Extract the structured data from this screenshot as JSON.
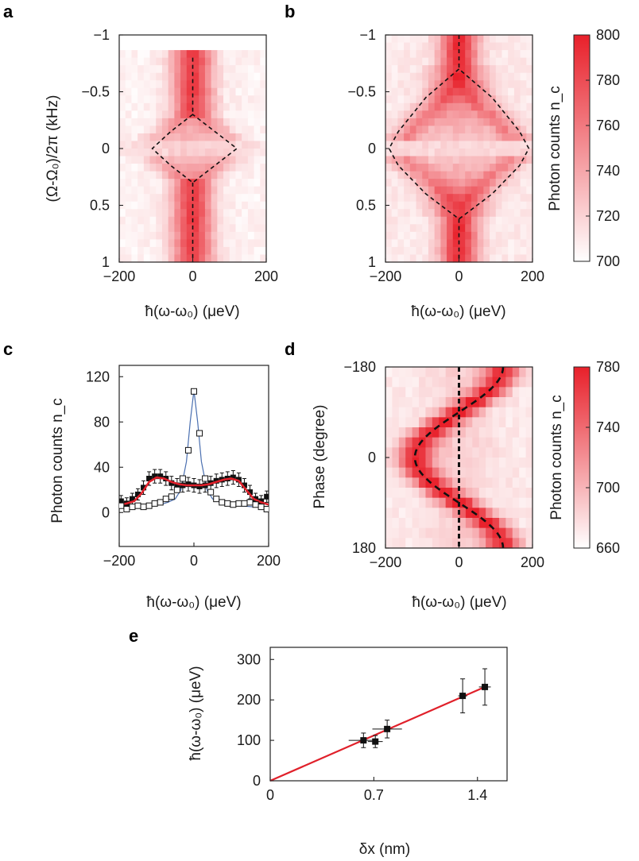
{
  "chart_data": [
    {
      "panel": "a",
      "type": "heatmap",
      "xlabel": "ħ(ω-ω₀) (μeV)",
      "ylabel": "(Ω-Ω₀)/2π (kHz)",
      "xlim": [
        -200,
        200
      ],
      "ylim": [
        -1,
        1
      ],
      "y_inverted": true,
      "xticks": [
        "−200",
        "0",
        "200"
      ],
      "yticks": [
        "−1",
        "−0.5",
        "0",
        "0.5",
        "1"
      ],
      "colorbar": {
        "label": "Photon counts n_c",
        "range": [
          700,
          800
        ],
        "ticks": [
          "800",
          "780",
          "760",
          "740",
          "720",
          "700"
        ]
      },
      "map_extent_y": [
        -0.85,
        1.0
      ],
      "ridge_width": 38,
      "background_level": 0.06,
      "dashed_curve": {
        "center_line_y": [
          [
            -0.8,
            -0.3
          ],
          [
            0.3,
            1.0
          ]
        ],
        "loop": [
          [
            0,
            -0.3
          ],
          [
            -60,
            -0.15
          ],
          [
            -110,
            0
          ],
          [
            -60,
            0.15
          ],
          [
            0,
            0.3
          ],
          [
            60,
            0.15
          ],
          [
            120,
            0
          ],
          [
            60,
            -0.15
          ]
        ]
      }
    },
    {
      "panel": "b",
      "type": "heatmap",
      "xlabel": "ħ(ω-ω₀) (μeV)",
      "ylabel": "",
      "xlim": [
        -200,
        200
      ],
      "ylim": [
        -1,
        1
      ],
      "y_inverted": true,
      "xticks": [
        "−200",
        "0",
        "200"
      ],
      "yticks": [
        "−1",
        "−0.5",
        "0",
        "0.5",
        "1"
      ],
      "map_extent_y": [
        -1.0,
        1.0
      ],
      "ridge_width": 35,
      "background_level": 0.1,
      "dashed_curve": {
        "center_line_y": [
          [
            -1.0,
            -0.7
          ],
          [
            0.62,
            1.0
          ]
        ],
        "loop": [
          [
            0,
            -0.7
          ],
          [
            -90,
            -0.45
          ],
          [
            -165,
            -0.15
          ],
          [
            -190,
            0
          ],
          [
            -165,
            0.15
          ],
          [
            -90,
            0.4
          ],
          [
            0,
            0.62
          ],
          [
            90,
            0.4
          ],
          [
            165,
            0.15
          ],
          [
            190,
            0
          ],
          [
            165,
            -0.15
          ],
          [
            90,
            -0.45
          ]
        ]
      }
    },
    {
      "panel": "c",
      "type": "scatter",
      "xlabel": "ħ(ω-ω₀) (μeV)",
      "ylabel": "Photon counts n_c",
      "xlim": [
        -200,
        200
      ],
      "ylim": [
        -30,
        130
      ],
      "xticks": [
        "−200",
        "0",
        "200"
      ],
      "yticks": [
        "0",
        "40",
        "80",
        "120"
      ],
      "series": [
        {
          "name": "open squares",
          "marker": "open-square",
          "x": [
            -195,
            -180,
            -165,
            -150,
            -135,
            -120,
            -105,
            -90,
            -75,
            -60,
            -45,
            -30,
            -15,
            0,
            15,
            30,
            45,
            60,
            75,
            90,
            105,
            120,
            135,
            150,
            165,
            180,
            195
          ],
          "y": [
            6,
            3,
            5,
            6,
            5,
            6,
            8,
            9,
            12,
            14,
            20,
            30,
            55,
            107,
            70,
            30,
            18,
            12,
            9,
            8,
            7,
            8,
            8,
            9,
            7,
            5,
            3
          ]
        },
        {
          "name": "filled squares",
          "marker": "filled-square",
          "x": [
            -195,
            -180,
            -165,
            -150,
            -135,
            -120,
            -105,
            -90,
            -75,
            -60,
            -45,
            -30,
            -15,
            0,
            15,
            30,
            45,
            60,
            75,
            90,
            105,
            120,
            135,
            150,
            165,
            180,
            195
          ],
          "y": [
            10,
            8,
            12,
            16,
            22,
            30,
            32,
            32,
            30,
            26,
            24,
            24,
            25,
            24,
            23,
            24,
            26,
            28,
            29,
            30,
            31,
            29,
            24,
            18,
            12,
            10,
            14
          ],
          "err": [
            5,
            5,
            5,
            5,
            6,
            6,
            6,
            6,
            6,
            6,
            6,
            6,
            6,
            6,
            6,
            6,
            6,
            6,
            6,
            6,
            6,
            6,
            6,
            6,
            5,
            5,
            5
          ]
        },
        {
          "name": "blue fit",
          "style": "line",
          "color": "#4a6fb0",
          "x": [
            -200,
            -160,
            -120,
            -90,
            -70,
            -50,
            -35,
            -20,
            -10,
            0,
            10,
            20,
            35,
            50,
            70,
            90,
            120,
            160,
            200
          ],
          "y": [
            5,
            5,
            6,
            7,
            9,
            12,
            20,
            45,
            80,
            108,
            80,
            45,
            20,
            12,
            9,
            7,
            6,
            5,
            5
          ]
        },
        {
          "name": "red fit",
          "style": "line",
          "color": "#e0202a",
          "x": [
            -200,
            -180,
            -160,
            -140,
            -120,
            -100,
            -80,
            -60,
            -40,
            -20,
            0,
            20,
            40,
            60,
            80,
            100,
            120,
            140,
            160,
            180,
            200
          ],
          "y": [
            7,
            8,
            10,
            17,
            27,
            31,
            30,
            27,
            25,
            24,
            24,
            24,
            25,
            27,
            29,
            30,
            28,
            20,
            12,
            9,
            7
          ]
        }
      ]
    },
    {
      "panel": "d",
      "type": "heatmap",
      "xlabel": "ħ(ω-ω₀) (μeV)",
      "ylabel": "Phase (degree)",
      "xlim": [
        -200,
        200
      ],
      "ylim": [
        -180,
        180
      ],
      "y_inverted": true,
      "xticks": [
        "−200",
        "0",
        "200"
      ],
      "yticks": [
        "−180",
        "0",
        "180"
      ],
      "colorbar": {
        "label": "Photon counts n_c",
        "range": [
          660,
          780
        ],
        "ticks": [
          "780",
          "740",
          "700",
          "660"
        ]
      },
      "amplitude": 120,
      "ridge_width": 34,
      "dashed_curve": {
        "type": "x = -120·cos(phase)",
        "vertical_line_x": 0
      }
    },
    {
      "panel": "e",
      "type": "scatter",
      "xlabel": "δx (nm)",
      "ylabel": "ħ(ω-ω₀) (μeV)",
      "xlim": [
        0,
        1.6
      ],
      "ylim": [
        0,
        330
      ],
      "xticks": [
        "0",
        "0.7",
        "1.4"
      ],
      "yticks": [
        "0",
        "100",
        "200",
        "300"
      ],
      "series": [
        {
          "name": "data",
          "marker": "filled-square",
          "x": [
            0.63,
            0.71,
            0.79,
            1.3,
            1.45
          ],
          "y": [
            100,
            97,
            128,
            210,
            232
          ],
          "xerr": [
            0.1,
            0.05,
            0.1,
            0.03,
            0.04
          ],
          "yerr": [
            18,
            15,
            22,
            42,
            45
          ]
        },
        {
          "name": "linear fit",
          "style": "line",
          "color": "#e0202a",
          "x": [
            0,
            1.45
          ],
          "y": [
            0,
            232
          ]
        }
      ]
    }
  ],
  "panel_letters": {
    "a": "a",
    "b": "b",
    "c": "c",
    "d": "d",
    "e": "e"
  }
}
